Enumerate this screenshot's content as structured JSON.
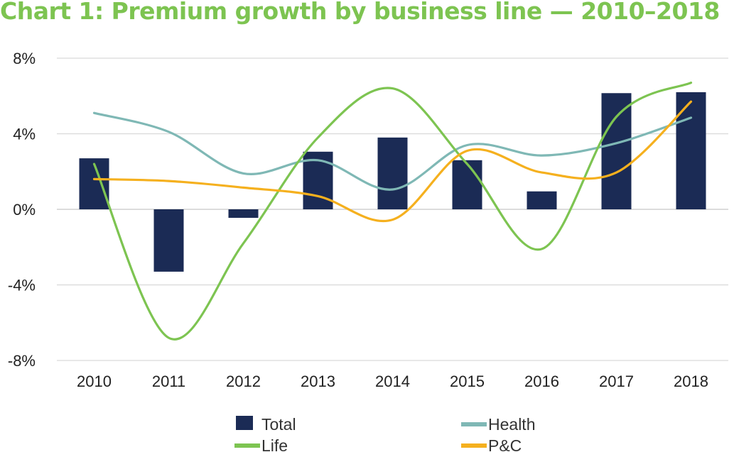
{
  "chart_data": {
    "type": "bar",
    "title": "Chart 1: Premium growth by business line — 2010–2018",
    "categories": [
      "2010",
      "2011",
      "2012",
      "2013",
      "2014",
      "2015",
      "2016",
      "2017",
      "2018"
    ],
    "y_ticks": [
      8,
      4,
      0,
      -4,
      -8
    ],
    "y_tick_labels": [
      "8%",
      "4%",
      "0%",
      "-4%",
      "-8%"
    ],
    "ylim": [
      -8,
      8
    ],
    "unit": "%",
    "grid": true,
    "legend_position": "bottom",
    "series": [
      {
        "name": "Total",
        "type": "bar",
        "color": "#1b2b55",
        "values": [
          2.7,
          -3.3,
          -0.45,
          3.05,
          3.8,
          2.6,
          0.95,
          6.15,
          6.2
        ]
      },
      {
        "name": "Health",
        "type": "line",
        "color": "#7fb8b5",
        "values": [
          5.1,
          4.1,
          1.9,
          2.6,
          1.05,
          3.4,
          2.85,
          3.5,
          4.85
        ]
      },
      {
        "name": "Life",
        "type": "line",
        "color": "#7dc451",
        "values": [
          2.4,
          -6.8,
          -1.8,
          3.8,
          6.4,
          2.4,
          -2.1,
          4.9,
          6.7
        ]
      },
      {
        "name": "P&C",
        "type": "line",
        "color": "#f5b01e",
        "values": [
          1.6,
          1.5,
          1.15,
          0.7,
          -0.55,
          3.1,
          1.95,
          1.95,
          5.7
        ]
      }
    ]
  },
  "colors": {
    "title": "#7dc451",
    "grid": "#d9d9d9",
    "axis": "#c8c8c8"
  }
}
